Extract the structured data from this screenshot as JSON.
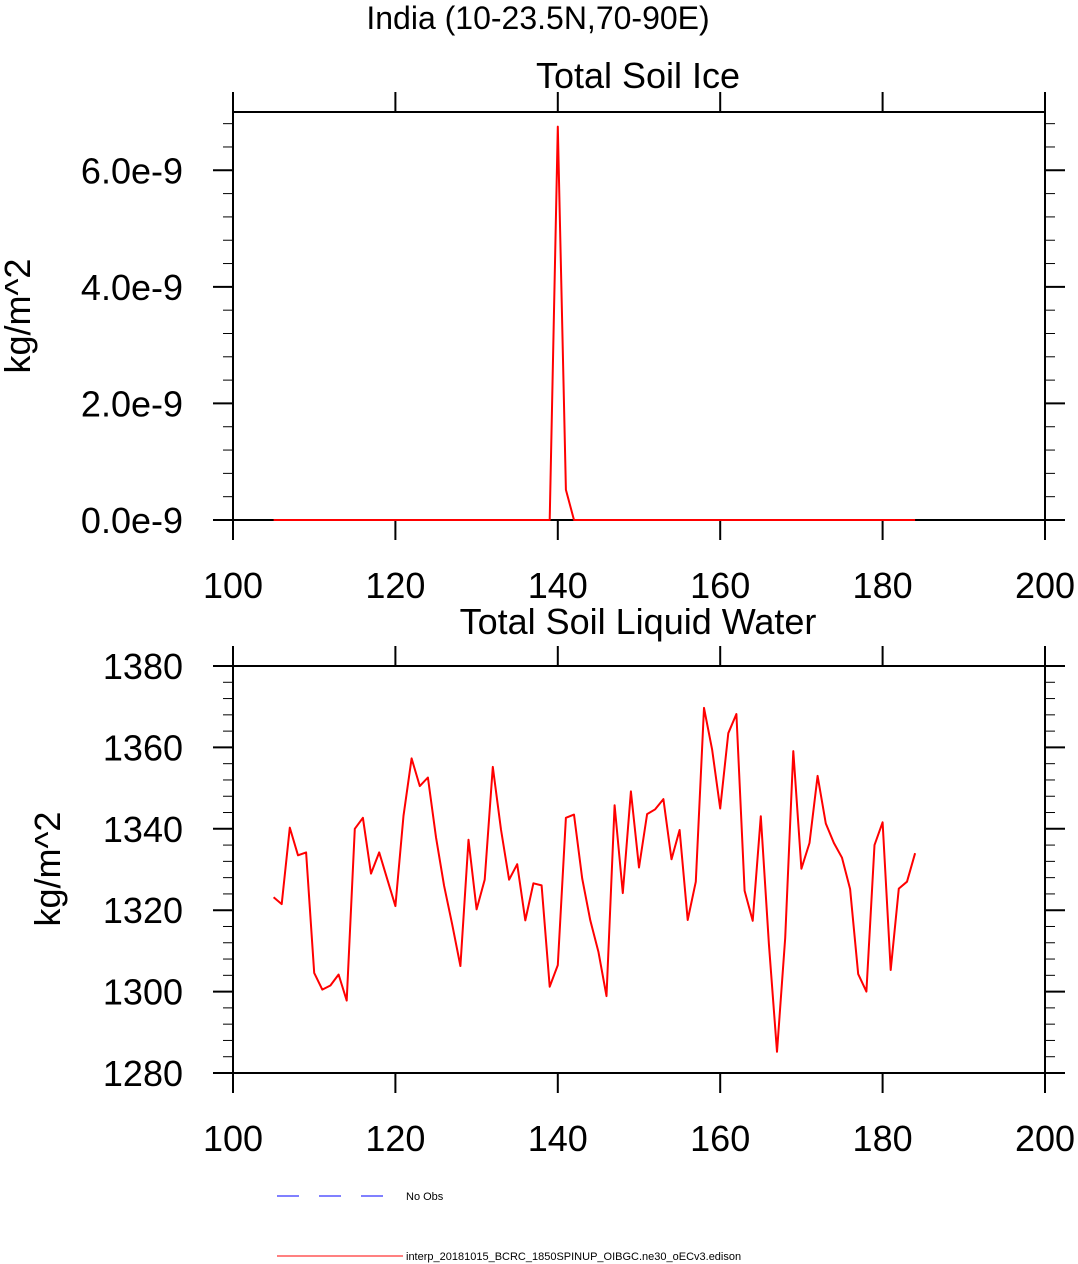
{
  "figure": {
    "suptitle": "India (10-23.5N,70-90E)"
  },
  "chart_data": [
    {
      "type": "line",
      "title": "Total Soil Ice",
      "ylabel": "kg/m^2",
      "xlabel": "",
      "xlim": [
        100,
        200
      ],
      "ylim": [
        0,
        7e-09
      ],
      "xticks": [
        100,
        120,
        140,
        160,
        180,
        200
      ],
      "xtick_labels": [
        "100",
        "120",
        "140",
        "160",
        "180",
        "200"
      ],
      "yticks": [
        0,
        2e-09,
        4e-09,
        6e-09
      ],
      "ytick_labels": [
        "0.0e-9",
        "2.0e-9",
        "4.0e-9",
        "6.0e-9"
      ],
      "grid": false,
      "series": [
        {
          "name": "interp_20181015_BCRC_1850SPINUP_OIBGC.ne30_oECv3.edison",
          "color": "#ff0000",
          "x": [
            105,
            106,
            107,
            108,
            109,
            110,
            111,
            112,
            113,
            114,
            115,
            116,
            117,
            118,
            119,
            120,
            121,
            122,
            123,
            124,
            125,
            126,
            127,
            128,
            129,
            130,
            131,
            132,
            133,
            134,
            135,
            136,
            137,
            138,
            139,
            140,
            141,
            142,
            143,
            144,
            145,
            146,
            147,
            148,
            149,
            150,
            151,
            152,
            153,
            154,
            155,
            156,
            157,
            158,
            159,
            160,
            161,
            162,
            163,
            164,
            165,
            166,
            167,
            168,
            169,
            170,
            171,
            172,
            173,
            174,
            175,
            176,
            177,
            178,
            179,
            180,
            181,
            182,
            183,
            184
          ],
          "y": [
            0,
            0,
            0,
            0,
            0,
            0,
            0,
            0,
            0,
            0,
            0,
            0,
            0,
            0,
            0,
            0,
            0,
            0,
            0,
            0,
            0,
            0,
            0,
            0,
            0,
            0,
            0,
            0,
            0,
            0,
            0,
            0,
            0,
            0,
            0,
            6.75e-09,
            5.2e-10,
            0,
            0,
            0,
            0,
            0,
            0,
            0,
            0,
            0,
            0,
            0,
            0,
            0,
            0,
            0,
            0,
            0,
            0,
            0,
            0,
            0,
            0,
            0,
            0,
            0,
            0,
            0,
            0,
            0,
            0,
            0,
            0,
            0,
            0,
            0,
            0,
            0,
            0,
            0,
            0,
            0,
            0,
            0
          ]
        }
      ]
    },
    {
      "type": "line",
      "title": "Total Soil Liquid Water",
      "ylabel": "kg/m^2",
      "xlabel": "",
      "xlim": [
        100,
        200
      ],
      "ylim": [
        1280,
        1380
      ],
      "xticks": [
        100,
        120,
        140,
        160,
        180,
        200
      ],
      "xtick_labels": [
        "100",
        "120",
        "140",
        "160",
        "180",
        "200"
      ],
      "yticks": [
        1280,
        1300,
        1320,
        1340,
        1360,
        1380
      ],
      "ytick_labels": [
        "1280",
        "1300",
        "1320",
        "1340",
        "1360",
        "1380"
      ],
      "grid": false,
      "series": [
        {
          "name": "interp_20181015_BCRC_1850SPINUP_OIBGC.ne30_oECv3.edison",
          "color": "#ff0000",
          "x": [
            105,
            106,
            107,
            108,
            109,
            110,
            111,
            112,
            113,
            114,
            115,
            116,
            117,
            118,
            119,
            120,
            121,
            122,
            123,
            124,
            125,
            126,
            127,
            128,
            129,
            130,
            131,
            132,
            133,
            134,
            135,
            136,
            137,
            138,
            139,
            140,
            141,
            142,
            143,
            144,
            145,
            146,
            147,
            148,
            149,
            150,
            151,
            152,
            153,
            154,
            155,
            156,
            157,
            158,
            159,
            160,
            161,
            162,
            163,
            164,
            165,
            166,
            167,
            168,
            169,
            170,
            171,
            172,
            173,
            174,
            175,
            176,
            177,
            178,
            179,
            180,
            181,
            182,
            183,
            184
          ],
          "y": [
            1323.2,
            1321.5,
            1340.3,
            1333.5,
            1334.2,
            1304.6,
            1300.5,
            1301.5,
            1304.2,
            1297.8,
            1340,
            1342.7,
            1329,
            1334.2,
            1327.6,
            1321,
            1343.2,
            1357.3,
            1350.5,
            1352.6,
            1337.9,
            1326,
            1316.5,
            1306.3,
            1337.3,
            1320.2,
            1327.5,
            1355.2,
            1339.8,
            1327.5,
            1331.3,
            1317.5,
            1326.6,
            1326.1,
            1301.2,
            1306.5,
            1342.7,
            1343.5,
            1327.8,
            1317.5,
            1309.8,
            1298.9,
            1345.8,
            1324.2,
            1349.2,
            1330.5,
            1343.6,
            1344.8,
            1347.3,
            1332.5,
            1339.7,
            1317.6,
            1327,
            1369.7,
            1359.5,
            1345,
            1363.5,
            1368.2,
            1324.8,
            1317.4,
            1343.1,
            1311.7,
            1285.2,
            1313.2,
            1359.1,
            1330.2,
            1336.5,
            1353,
            1341.3,
            1336.5,
            1332.9,
            1325.2,
            1304.3,
            1300,
            1336,
            1341.6,
            1305.3,
            1325.3,
            1327,
            1334
          ]
        }
      ]
    }
  ],
  "legend": {
    "items": [
      {
        "label": "No Obs",
        "color": "#0000ff",
        "style": "dashed"
      },
      {
        "label": "interp_20181015_BCRC_1850SPINUP_OIBGC.ne30_oECv3.edison",
        "color": "#ff0000",
        "style": "solid"
      }
    ]
  }
}
